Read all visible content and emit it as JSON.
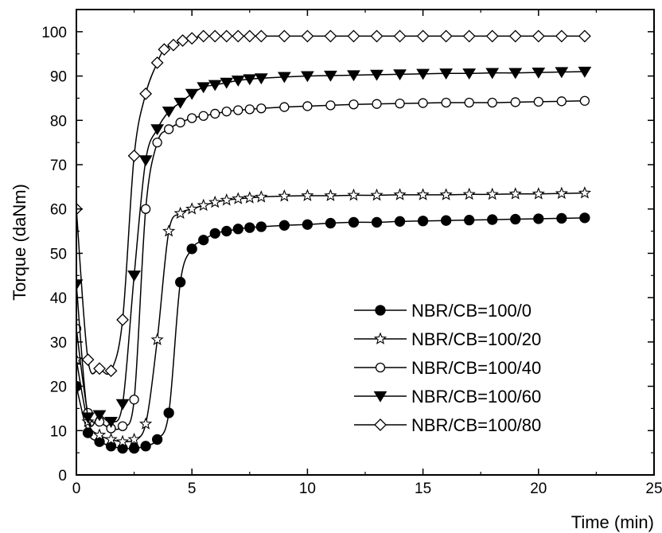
{
  "chart_data": {
    "type": "line",
    "title": "",
    "xlabel": "Time (min)",
    "ylabel": "Torque (daNm)",
    "xlim": [
      0,
      25
    ],
    "ylim": [
      0,
      105
    ],
    "xticks": [
      0,
      5,
      10,
      15,
      20,
      25
    ],
    "yticks": [
      0,
      10,
      20,
      30,
      40,
      50,
      60,
      70,
      80,
      90,
      100
    ],
    "grid": false,
    "legend_position": "bottom-right",
    "series": [
      {
        "name": "NBR/CB=100/0",
        "marker": "filled-circle",
        "color": "#000000",
        "x": [
          0,
          0.5,
          1,
          1.5,
          2,
          2.5,
          3,
          3.5,
          4,
          4.5,
          5,
          5.5,
          6,
          6.5,
          7,
          7.5,
          8,
          9,
          10,
          11,
          12,
          13,
          14,
          15,
          16,
          17,
          18,
          19,
          20,
          21,
          22
        ],
        "y": [
          20,
          9.5,
          7.5,
          6.5,
          6,
          6,
          6.5,
          8,
          14,
          43.5,
          51,
          53,
          54.5,
          55,
          55.5,
          55.8,
          56,
          56.3,
          56.5,
          56.8,
          57,
          57,
          57.2,
          57.3,
          57.4,
          57.5,
          57.6,
          57.7,
          57.8,
          57.9,
          58
        ]
      },
      {
        "name": "NBR/CB=100/20",
        "marker": "open-star",
        "color": "#000000",
        "x": [
          0,
          0.5,
          1,
          1.5,
          2,
          2.5,
          3,
          3.5,
          4,
          4.5,
          5,
          5.5,
          6,
          6.5,
          7,
          7.5,
          8,
          9,
          10,
          11,
          12,
          13,
          14,
          15,
          16,
          17,
          18,
          19,
          20,
          21,
          22
        ],
        "y": [
          26,
          12,
          9,
          8,
          7.5,
          8,
          11.5,
          30.5,
          55,
          59,
          60,
          60.8,
          61.5,
          62,
          62.3,
          62.5,
          62.7,
          62.9,
          63,
          63,
          63.1,
          63.1,
          63.2,
          63.2,
          63.2,
          63.3,
          63.3,
          63.4,
          63.4,
          63.5,
          63.6
        ]
      },
      {
        "name": "NBR/CB=100/40",
        "marker": "open-circle",
        "color": "#000000",
        "x": [
          0,
          0.5,
          1,
          1.5,
          2,
          2.5,
          3,
          3.5,
          4,
          4.5,
          5,
          5.5,
          6,
          6.5,
          7,
          7.5,
          8,
          9,
          10,
          11,
          12,
          13,
          14,
          15,
          16,
          17,
          18,
          19,
          20,
          21,
          22
        ],
        "y": [
          33,
          14,
          12,
          10.5,
          11,
          17,
          60,
          75,
          78,
          79.5,
          80.5,
          81,
          81.5,
          82,
          82.3,
          82.5,
          82.7,
          83,
          83.2,
          83.4,
          83.6,
          83.7,
          83.8,
          83.9,
          84,
          84,
          84,
          84.1,
          84.2,
          84.3,
          84.4
        ]
      },
      {
        "name": "NBR/CB=100/60",
        "marker": "filled-triangle-down",
        "color": "#000000",
        "x": [
          0,
          0.5,
          1,
          1.5,
          2,
          2.5,
          3,
          3.5,
          4,
          4.5,
          5,
          5.5,
          6,
          6.5,
          7,
          7.5,
          8,
          9,
          10,
          11,
          12,
          13,
          14,
          15,
          16,
          17,
          18,
          19,
          20,
          21,
          22
        ],
        "y": [
          43,
          13,
          13.5,
          12,
          16,
          45,
          71,
          78,
          82,
          84,
          86,
          87.5,
          88,
          88.5,
          89,
          89.3,
          89.5,
          89.8,
          90,
          90.1,
          90.2,
          90.3,
          90.4,
          90.5,
          90.6,
          90.6,
          90.7,
          90.7,
          90.8,
          90.9,
          91
        ]
      },
      {
        "name": "NBR/CB=100/80",
        "marker": "open-diamond",
        "color": "#000000",
        "x": [
          0,
          0.5,
          1,
          1.5,
          2,
          2.5,
          3,
          3.5,
          3.8,
          4.2,
          4.6,
          5,
          5.5,
          6,
          6.5,
          7,
          7.5,
          8,
          9,
          10,
          11,
          12,
          13,
          14,
          15,
          16,
          17,
          18,
          19,
          20,
          21,
          22
        ],
        "y": [
          60,
          26,
          24,
          23.5,
          35,
          72,
          86,
          93,
          96,
          97,
          98,
          98.5,
          99,
          99,
          99,
          99,
          99,
          99,
          99,
          99,
          99,
          99,
          99,
          99,
          99,
          99,
          99,
          99,
          99,
          99,
          99,
          99
        ]
      }
    ]
  }
}
